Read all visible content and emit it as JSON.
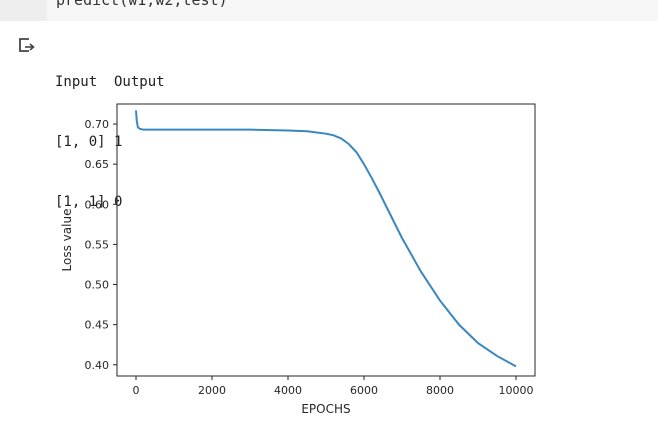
{
  "cell": {
    "code_text": "predict(w1,w2,test)"
  },
  "output": {
    "icon": "output-redirect-icon",
    "lines": [
      "Input  Output",
      "[1, 0] 1",
      "[1, 1] 0"
    ]
  },
  "chart_data": {
    "type": "line",
    "xlabel": "EPOCHS",
    "ylabel": "Loss value",
    "xlim": [
      -500,
      10500
    ],
    "ylim": [
      0.386,
      0.725
    ],
    "x_ticks": [
      0,
      2000,
      4000,
      6000,
      8000,
      10000
    ],
    "x_tick_labels": [
      "0",
      "2000",
      "4000",
      "6000",
      "8000",
      "10000"
    ],
    "y_ticks": [
      0.4,
      0.45,
      0.5,
      0.55,
      0.6,
      0.65,
      0.7
    ],
    "y_tick_labels": [
      "0.40",
      "0.45",
      "0.50",
      "0.55",
      "0.60",
      "0.65",
      "0.70"
    ],
    "grid": false,
    "series": [
      {
        "color": "#3a87c0",
        "x": [
          0,
          20,
          50,
          100,
          200,
          500,
          1000,
          2000,
          3000,
          4000,
          4500,
          5000,
          5200,
          5400,
          5600,
          5800,
          6000,
          6200,
          6400,
          6600,
          6800,
          7000,
          7500,
          8000,
          8500,
          9000,
          9500,
          10000
        ],
        "y": [
          0.717,
          0.704,
          0.696,
          0.694,
          0.693,
          0.693,
          0.693,
          0.693,
          0.693,
          0.692,
          0.691,
          0.688,
          0.686,
          0.682,
          0.675,
          0.665,
          0.65,
          0.633,
          0.615,
          0.596,
          0.577,
          0.558,
          0.516,
          0.48,
          0.45,
          0.427,
          0.411,
          0.398
        ]
      }
    ]
  }
}
